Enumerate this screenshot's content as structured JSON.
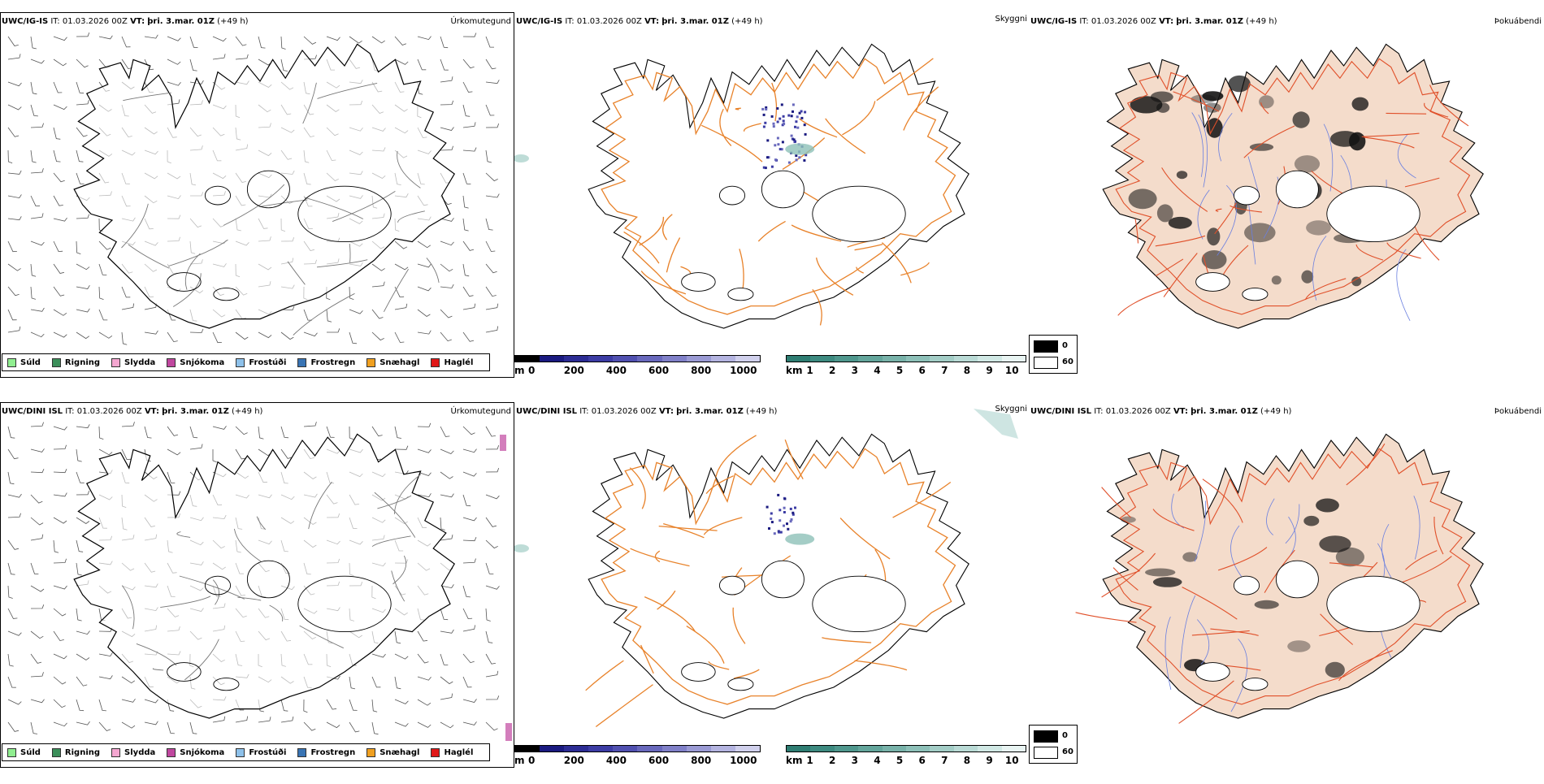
{
  "rows": [
    {
      "model": "UWC/IG-IS",
      "it_label": "IT:",
      "it_value": "01.03.2026 00Z",
      "vt_label": "VT:",
      "vt_value": "þri. 3.mar. 01Z",
      "lead": "(+49 h)"
    },
    {
      "model": "UWC/DINI ISL",
      "it_label": "IT:",
      "it_value": "01.03.2026 00Z",
      "vt_label": "VT:",
      "vt_value": "þri. 3.mar. 01Z",
      "lead": "(+49 h)"
    }
  ],
  "panel_titles": {
    "precip": "Úrkomutegund",
    "ceiling": "Skyggni",
    "fog": "Þokuábendi"
  },
  "precip_legend": [
    {
      "label": "Súld",
      "color": "#90ee90"
    },
    {
      "label": "Rigning",
      "color": "#3c8f5a"
    },
    {
      "label": "Slydda",
      "color": "#f4a6d0"
    },
    {
      "label": "Snjókoma",
      "color": "#c0479f"
    },
    {
      "label": "Frostúði",
      "color": "#8ec1ea"
    },
    {
      "label": "Frostregn",
      "color": "#3974b4"
    },
    {
      "label": "Snæhagl",
      "color": "#f0a020"
    },
    {
      "label": "Haglél",
      "color": "#e01818"
    }
  ],
  "ceiling_bar": {
    "unit": "m",
    "ticks": [
      "0",
      "200",
      "400",
      "600",
      "800",
      "1000"
    ],
    "colors": [
      "#000000",
      "#1a1a80",
      "#2c2c94",
      "#3c3ca4",
      "#5050b0",
      "#6868bc",
      "#8080c8",
      "#9a9ad4",
      "#b4b4e0",
      "#d0d0ec"
    ]
  },
  "vis_bar": {
    "unit": "km",
    "ticks": [
      "1",
      "2",
      "3",
      "4",
      "5",
      "6",
      "7",
      "8",
      "9",
      "10"
    ],
    "colors": [
      "#2e7d72",
      "#3d8a80",
      "#4f978d",
      "#63a59b",
      "#78b2a9",
      "#8dc0b8",
      "#a3cdc6",
      "#b9dad5",
      "#d0e8e4",
      "#e8f4f2"
    ]
  },
  "fog_legend": {
    "top": "0",
    "bottom": "60",
    "top_color": "#000000",
    "bottom_color": "#ffffff"
  },
  "colors": {
    "land_fog": "#f4dccb",
    "roads_orange": "#e8822a",
    "roads_red": "#e0502a",
    "rivers": "#6a7fe0"
  }
}
